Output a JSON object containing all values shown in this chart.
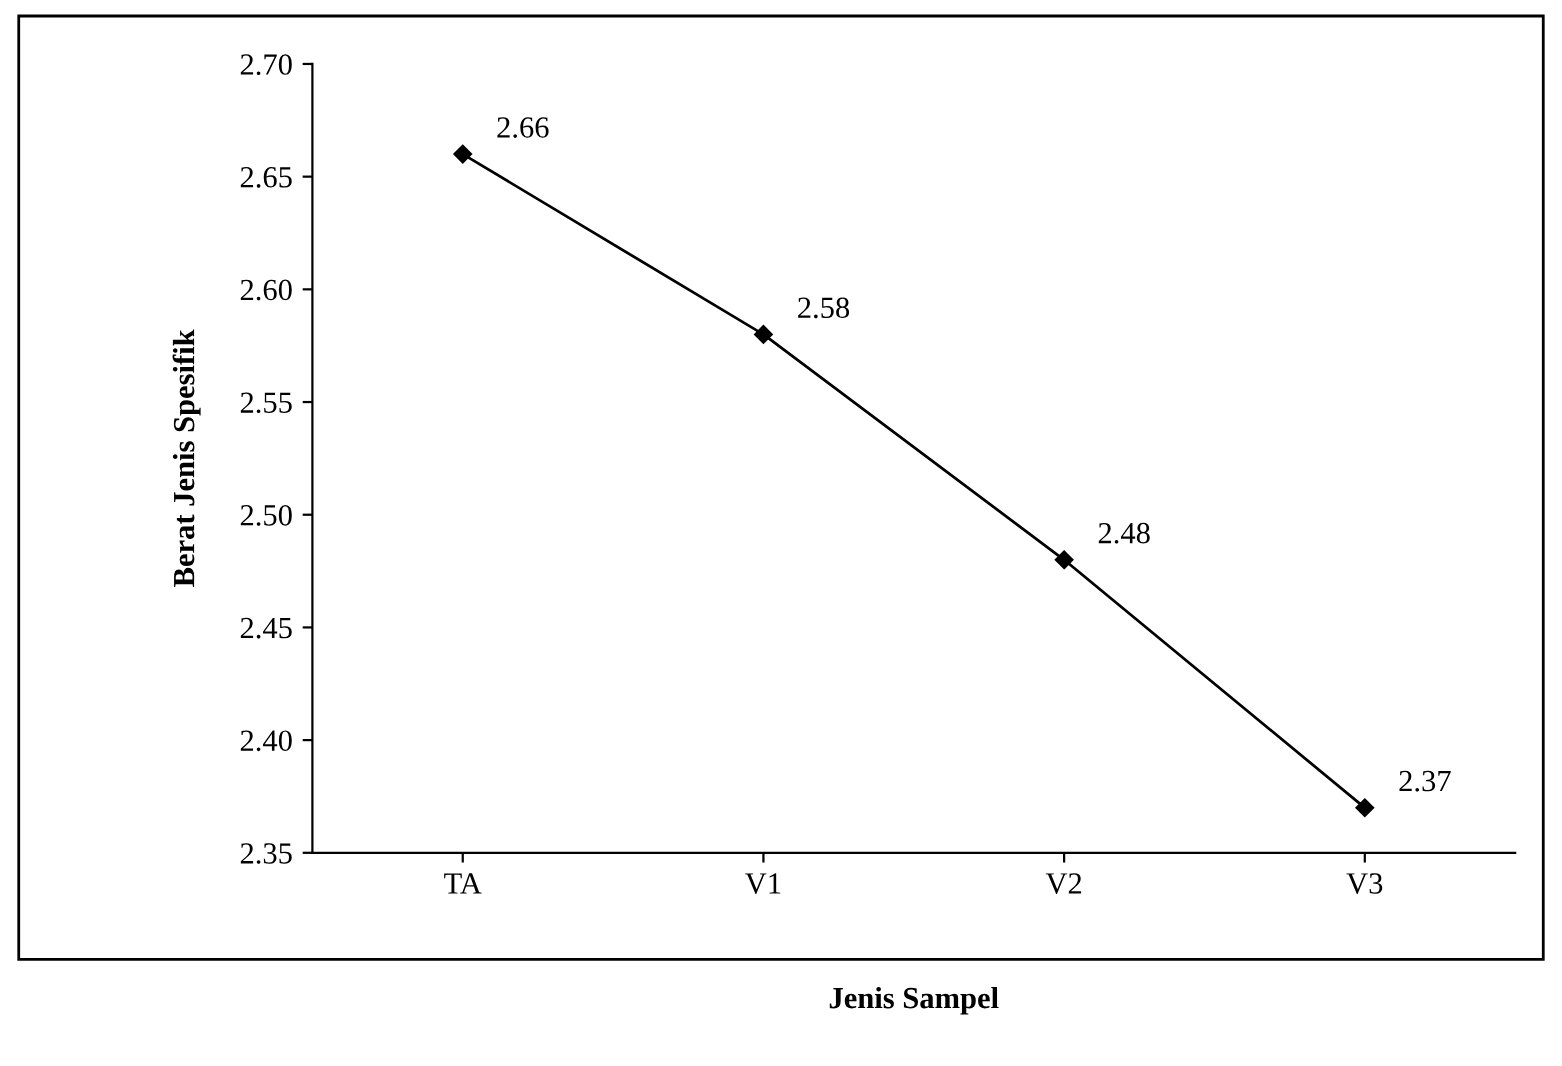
{
  "chart_data": {
    "type": "line",
    "xlabel": "Jenis Sampel",
    "ylabel": "Berat Jenis Spesifik",
    "categories": [
      "TA",
      "V1",
      "V2",
      "V3"
    ],
    "series": [
      {
        "color": "#000000",
        "values": [
          2.66,
          2.58,
          2.48,
          2.37
        ]
      }
    ],
    "ylim": [
      2.35,
      2.7
    ],
    "yticks": [
      2.35,
      {
        "value": 2.4,
        "label": "2.40"
      },
      2.45,
      {
        "value": 2.5,
        "label": "2.50"
      },
      2.55,
      {
        "value": 2.6,
        "label": "2.60"
      },
      2.65,
      {
        "value": 2.7,
        "label": "2.70"
      }
    ],
    "marker": "diamond",
    "line_style": "solid",
    "data_labels": true,
    "grid": false
  }
}
